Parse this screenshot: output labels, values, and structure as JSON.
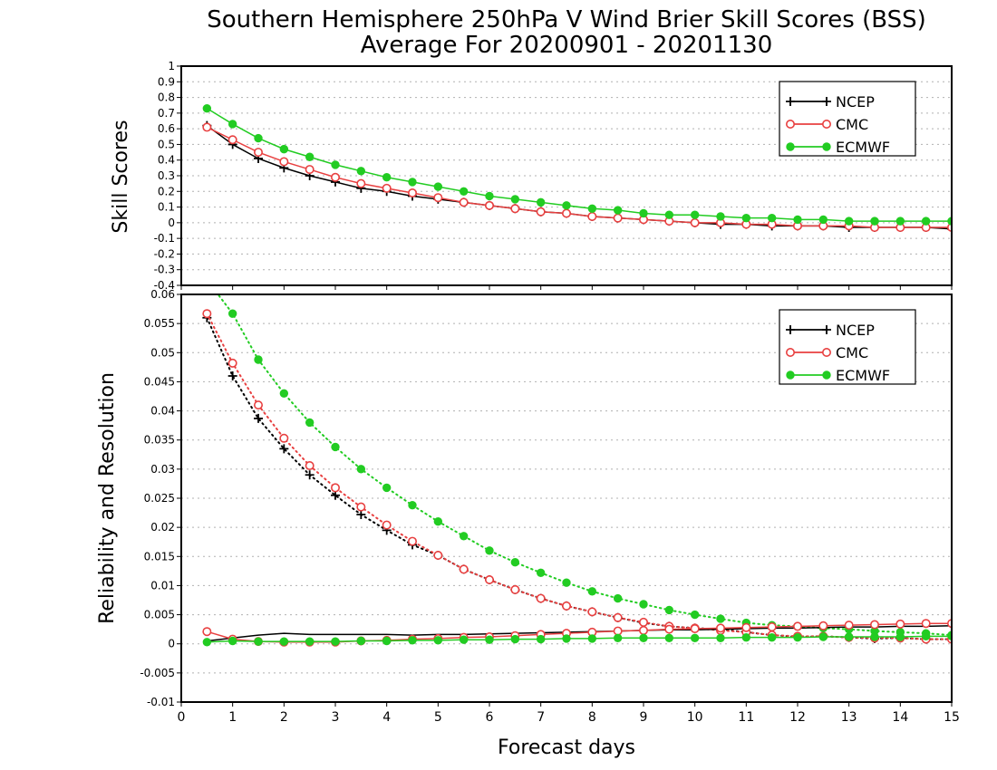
{
  "chart_data": {
    "title_line1": "Southern Hemisphere 250hPa V Wind Brier Skill Scores (BSS)",
    "title_line2": "Average For 20200901 - 20201130",
    "xlabel": "Forecast days",
    "x_ticks": [
      0,
      1,
      2,
      3,
      4,
      5,
      6,
      7,
      8,
      9,
      10,
      11,
      12,
      13,
      14,
      15
    ],
    "x": [
      0.5,
      1.0,
      1.5,
      2.0,
      2.5,
      3.0,
      3.5,
      4.0,
      4.5,
      5.0,
      5.5,
      6.0,
      6.5,
      7.0,
      7.5,
      8.0,
      8.5,
      9.0,
      9.5,
      10.0,
      10.5,
      11.0,
      11.5,
      12.0,
      12.5,
      13.0,
      13.5,
      14.0,
      14.5,
      15.0
    ],
    "colors": {
      "NCEP": "#000000",
      "CMC": "#e84040",
      "ECMWF": "#22cc22"
    },
    "panels": [
      {
        "type": "line",
        "ylabel": "Skill Scores",
        "ylim": [
          -0.4,
          1
        ],
        "y_ticks": [
          "1",
          "0.9",
          "0.8",
          "0.7",
          "0.6",
          "0.5",
          "0.4",
          "0.3",
          "0.2",
          "0.1",
          "0",
          "-0.1",
          "-0.2",
          "-0.3",
          "-0.4"
        ],
        "y_tick_values": [
          1,
          0.9,
          0.8,
          0.7,
          0.6,
          0.5,
          0.4,
          0.3,
          0.2,
          0.1,
          0,
          -0.1,
          -0.2,
          -0.3,
          -0.4
        ],
        "grid": true,
        "legend": [
          "NCEP",
          "CMC",
          "ECMWF"
        ],
        "legend_position": "top-right",
        "series": [
          {
            "name": "NCEP",
            "style": "solid",
            "marker": "plus",
            "values": [
              0.62,
              0.5,
              0.41,
              0.35,
              0.3,
              0.26,
              0.22,
              0.2,
              0.17,
              0.15,
              0.13,
              0.11,
              0.09,
              0.07,
              0.06,
              0.04,
              0.03,
              0.02,
              0.01,
              0.0,
              -0.01,
              -0.01,
              -0.02,
              -0.02,
              -0.02,
              -0.03,
              -0.03,
              -0.03,
              -0.03,
              -0.04
            ]
          },
          {
            "name": "CMC",
            "style": "solid",
            "marker": "open-circle",
            "values": [
              0.61,
              0.53,
              0.45,
              0.39,
              0.34,
              0.29,
              0.25,
              0.22,
              0.19,
              0.16,
              0.13,
              0.11,
              0.09,
              0.07,
              0.06,
              0.04,
              0.03,
              0.02,
              0.01,
              0.0,
              -0.0,
              -0.01,
              -0.01,
              -0.02,
              -0.02,
              -0.02,
              -0.03,
              -0.03,
              -0.03,
              -0.03
            ]
          },
          {
            "name": "ECMWF",
            "style": "solid",
            "marker": "filled-circle",
            "values": [
              0.73,
              0.63,
              0.54,
              0.47,
              0.42,
              0.37,
              0.33,
              0.29,
              0.26,
              0.23,
              0.2,
              0.17,
              0.15,
              0.13,
              0.11,
              0.09,
              0.08,
              0.06,
              0.05,
              0.05,
              0.04,
              0.03,
              0.03,
              0.02,
              0.02,
              0.01,
              0.01,
              0.01,
              0.01,
              0.01
            ]
          }
        ]
      },
      {
        "type": "line",
        "ylabel": "Reliability and Resolution",
        "ylim": [
          -0.01,
          0.06
        ],
        "y_ticks": [
          "0.06",
          "0.055",
          "0.05",
          "0.045",
          "0.04",
          "0.035",
          "0.03",
          "0.025",
          "0.02",
          "0.015",
          "0.01",
          "0.005",
          "0",
          "-0.005",
          "-0.01"
        ],
        "y_tick_values": [
          0.06,
          0.055,
          0.05,
          0.045,
          0.04,
          0.035,
          0.03,
          0.025,
          0.02,
          0.015,
          0.01,
          0.005,
          0,
          -0.005,
          -0.01
        ],
        "grid": true,
        "legend": [
          "NCEP",
          "CMC",
          "ECMWF"
        ],
        "legend_position": "top-right",
        "series": [
          {
            "name": "NCEP",
            "role": "resolution",
            "style": "dotted",
            "marker": "plus",
            "values": [
              0.056,
              0.046,
              0.0387,
              0.0335,
              0.029,
              0.0255,
              0.0222,
              0.0195,
              0.017,
              0.0152,
              0.0128,
              0.011,
              0.0093,
              0.0078,
              0.0065,
              0.0055,
              0.0045,
              0.0036,
              0.003,
              0.0027,
              0.0025,
              0.002,
              0.0015,
              0.0012,
              0.0013,
              0.0011,
              0.0009,
              0.001,
              0.0008,
              0.0008
            ]
          },
          {
            "name": "CMC",
            "role": "resolution",
            "style": "dotted",
            "marker": "open-circle",
            "values": [
              0.0567,
              0.0482,
              0.041,
              0.0353,
              0.0306,
              0.0268,
              0.0235,
              0.0204,
              0.0176,
              0.0152,
              0.0128,
              0.011,
              0.0093,
              0.0078,
              0.0065,
              0.0055,
              0.0045,
              0.0037,
              0.003,
              0.0027,
              0.0023,
              0.002,
              0.0015,
              0.0013,
              0.0013,
              0.0011,
              0.001,
              0.001,
              0.0008,
              0.0008
            ]
          },
          {
            "name": "ECMWF",
            "role": "resolution",
            "style": "dotted",
            "marker": "filled-circle",
            "values": [
              0.0625,
              0.0567,
              0.0488,
              0.043,
              0.038,
              0.0338,
              0.03,
              0.0268,
              0.0238,
              0.021,
              0.0185,
              0.016,
              0.014,
              0.0122,
              0.0105,
              0.009,
              0.0078,
              0.0068,
              0.0058,
              0.005,
              0.0043,
              0.0036,
              0.0032,
              0.003,
              0.0027,
              0.0025,
              0.0022,
              0.002,
              0.0018,
              0.0015
            ]
          },
          {
            "name": "NCEP",
            "role": "reliability",
            "style": "solid",
            "marker": "none",
            "values": [
              0.0005,
              0.001,
              0.0015,
              0.0018,
              0.0016,
              0.0016,
              0.0016,
              0.0016,
              0.0015,
              0.0016,
              0.0016,
              0.0017,
              0.0018,
              0.0019,
              0.002,
              0.0021,
              0.0022,
              0.0023,
              0.0024,
              0.0024,
              0.0025,
              0.0026,
              0.0027,
              0.0027,
              0.0028,
              0.0029,
              0.0029,
              0.003,
              0.003,
              0.0031
            ]
          },
          {
            "name": "CMC",
            "role": "reliability",
            "style": "solid",
            "marker": "open-circle",
            "values": [
              0.0021,
              0.0008,
              0.0004,
              0.0003,
              0.0003,
              0.0003,
              0.0005,
              0.0006,
              0.0008,
              0.0009,
              0.0011,
              0.0012,
              0.0014,
              0.0016,
              0.0018,
              0.002,
              0.0022,
              0.0023,
              0.0025,
              0.0026,
              0.0027,
              0.0028,
              0.0029,
              0.003,
              0.0031,
              0.0032,
              0.0033,
              0.0034,
              0.0035,
              0.0035
            ]
          },
          {
            "name": "ECMWF",
            "role": "reliability",
            "style": "solid",
            "marker": "filled-circle",
            "values": [
              0.0003,
              0.0005,
              0.0004,
              0.0004,
              0.0004,
              0.0004,
              0.0005,
              0.0005,
              0.0006,
              0.0006,
              0.0007,
              0.0007,
              0.0008,
              0.0008,
              0.0009,
              0.0009,
              0.001,
              0.001,
              0.001,
              0.001,
              0.001,
              0.0011,
              0.0011,
              0.0011,
              0.0012,
              0.0012,
              0.0012,
              0.0012,
              0.0013,
              0.0013
            ]
          }
        ]
      }
    ]
  }
}
